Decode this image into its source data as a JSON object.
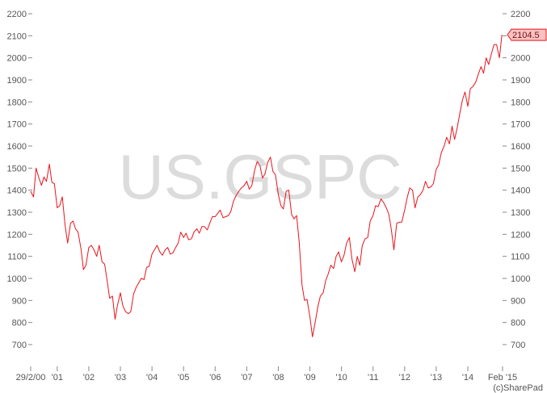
{
  "chart_data": {
    "type": "line",
    "watermark": "US.GSPC",
    "credit": "(c)SharePad",
    "last_value_label": "2104.5",
    "colors": {
      "line": "#e8141c",
      "label_fill": "#f8c2c2",
      "label_stroke": "#e8141c",
      "axis": "#888888"
    },
    "ylim": [
      650,
      2200
    ],
    "y_ticks": [
      700,
      800,
      900,
      1000,
      1100,
      1200,
      1300,
      1400,
      1500,
      1600,
      1700,
      1800,
      1900,
      2000,
      2100,
      2200
    ],
    "x_ticks": [
      {
        "t": 2000.16,
        "label": "29/2/00"
      },
      {
        "t": 2001.0,
        "label": "'01"
      },
      {
        "t": 2002.0,
        "label": "'02"
      },
      {
        "t": 2003.0,
        "label": "'03"
      },
      {
        "t": 2004.0,
        "label": "'04"
      },
      {
        "t": 2005.0,
        "label": "'05"
      },
      {
        "t": 2006.0,
        "label": "'06"
      },
      {
        "t": 2007.0,
        "label": "'07"
      },
      {
        "t": 2008.0,
        "label": "'08"
      },
      {
        "t": 2009.0,
        "label": "'09"
      },
      {
        "t": 2010.0,
        "label": "'10"
      },
      {
        "t": 2011.0,
        "label": "'11"
      },
      {
        "t": 2012.0,
        "label": "'12"
      },
      {
        "t": 2013.0,
        "label": "'13"
      },
      {
        "t": 2014.0,
        "label": "'14"
      },
      {
        "t": 2015.1,
        "label": "Feb '15"
      }
    ],
    "xlim": [
      2000.16,
      2015.1
    ],
    "series": [
      {
        "x": [
          2000.16,
          2000.25,
          2000.33,
          2000.42,
          2000.5,
          2000.58,
          2000.66,
          2000.75,
          2000.83,
          2000.91,
          2001.0,
          2001.08,
          2001.16,
          2001.25,
          2001.33,
          2001.42,
          2001.5,
          2001.58,
          2001.66,
          2001.75,
          2001.83,
          2001.91,
          2002.0,
          2002.08,
          2002.16,
          2002.25,
          2002.33,
          2002.42,
          2002.5,
          2002.58,
          2002.66,
          2002.75,
          2002.83,
          2002.91,
          2003.0,
          2003.08,
          2003.16,
          2003.25,
          2003.33,
          2003.42,
          2003.5,
          2003.58,
          2003.66,
          2003.75,
          2003.83,
          2003.91,
          2004.0,
          2004.08,
          2004.16,
          2004.25,
          2004.33,
          2004.42,
          2004.5,
          2004.58,
          2004.66,
          2004.75,
          2004.83,
          2004.91,
          2005.0,
          2005.08,
          2005.16,
          2005.25,
          2005.33,
          2005.42,
          2005.5,
          2005.58,
          2005.66,
          2005.75,
          2005.83,
          2005.91,
          2006.0,
          2006.08,
          2006.16,
          2006.25,
          2006.33,
          2006.42,
          2006.5,
          2006.58,
          2006.66,
          2006.75,
          2006.83,
          2006.91,
          2007.0,
          2007.08,
          2007.16,
          2007.25,
          2007.33,
          2007.42,
          2007.5,
          2007.58,
          2007.66,
          2007.75,
          2007.83,
          2007.91,
          2008.0,
          2008.08,
          2008.16,
          2008.25,
          2008.33,
          2008.42,
          2008.5,
          2008.58,
          2008.66,
          2008.75,
          2008.83,
          2008.91,
          2009.0,
          2009.08,
          2009.16,
          2009.25,
          2009.33,
          2009.42,
          2009.5,
          2009.58,
          2009.66,
          2009.75,
          2009.83,
          2009.91,
          2010.0,
          2010.08,
          2010.16,
          2010.25,
          2010.33,
          2010.42,
          2010.5,
          2010.58,
          2010.66,
          2010.75,
          2010.83,
          2010.91,
          2011.0,
          2011.08,
          2011.16,
          2011.25,
          2011.33,
          2011.42,
          2011.5,
          2011.58,
          2011.66,
          2011.75,
          2011.83,
          2011.91,
          2012.0,
          2012.08,
          2012.16,
          2012.25,
          2012.33,
          2012.42,
          2012.5,
          2012.58,
          2012.66,
          2012.75,
          2012.83,
          2012.91,
          2013.0,
          2013.08,
          2013.16,
          2013.25,
          2013.33,
          2013.42,
          2013.5,
          2013.58,
          2013.66,
          2013.75,
          2013.83,
          2013.91,
          2014.0,
          2014.08,
          2014.16,
          2014.25,
          2014.33,
          2014.42,
          2014.5,
          2014.58,
          2014.66,
          2014.75,
          2014.83,
          2014.91,
          2015.0,
          2015.08
        ],
        "values": [
          1395,
          1369,
          1500,
          1455,
          1422,
          1460,
          1440,
          1518,
          1435,
          1430,
          1320,
          1330,
          1370,
          1240,
          1160,
          1250,
          1260,
          1225,
          1210,
          1135,
          1040,
          1060,
          1140,
          1150,
          1130,
          1100,
          1150,
          1075,
          1065,
          990,
          910,
          920,
          815,
          880,
          935,
          875,
          850,
          840,
          850,
          930,
          960,
          980,
          1000,
          995,
          1050,
          1055,
          1110,
          1130,
          1150,
          1120,
          1105,
          1130,
          1140,
          1110,
          1115,
          1140,
          1160,
          1210,
          1185,
          1205,
          1175,
          1180,
          1210,
          1225,
          1205,
          1235,
          1235,
          1220,
          1250,
          1280,
          1280,
          1295,
          1310,
          1275,
          1280,
          1285,
          1305,
          1350,
          1375,
          1395,
          1410,
          1420,
          1440,
          1405,
          1420,
          1490,
          1530,
          1510,
          1455,
          1475,
          1525,
          1550,
          1485,
          1470,
          1380,
          1330,
          1315,
          1395,
          1400,
          1290,
          1270,
          1285,
          1165,
          970,
          900,
          905,
          825,
          735,
          795,
          870,
          920,
          935,
          990,
          1020,
          1060,
          1045,
          1100,
          1120,
          1075,
          1105,
          1160,
          1185,
          1090,
          1030,
          1100,
          1060,
          1150,
          1180,
          1185,
          1260,
          1285,
          1330,
          1325,
          1360,
          1345,
          1320,
          1290,
          1220,
          1130,
          1250,
          1255,
          1255,
          1310,
          1365,
          1410,
          1400,
          1320,
          1370,
          1380,
          1400,
          1440,
          1410,
          1415,
          1430,
          1495,
          1515,
          1570,
          1600,
          1640,
          1610,
          1690,
          1630,
          1680,
          1750,
          1810,
          1845,
          1780,
          1860,
          1870,
          1890,
          1925,
          1960,
          1930,
          2000,
          1970,
          2020,
          2060,
          2060,
          2000,
          2104.5
        ]
      }
    ]
  }
}
